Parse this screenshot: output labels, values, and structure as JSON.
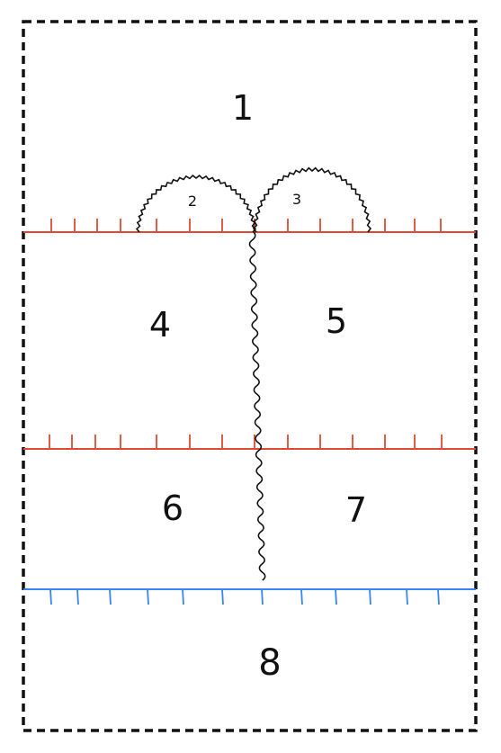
{
  "diagram": {
    "frame_style": "dashed",
    "colors": {
      "frame": "#111111",
      "red_line": "#e04a33",
      "blue_line": "#3b82f6",
      "wavy_line": "#111111"
    },
    "regions": [
      {
        "id": "region-1",
        "label": "1"
      },
      {
        "id": "region-2",
        "label": "2"
      },
      {
        "id": "region-3",
        "label": "3"
      },
      {
        "id": "region-4",
        "label": "4"
      },
      {
        "id": "region-5",
        "label": "5"
      },
      {
        "id": "region-6",
        "label": "6"
      },
      {
        "id": "region-7",
        "label": "7"
      },
      {
        "id": "region-8",
        "label": "8"
      }
    ],
    "boundaries": [
      {
        "id": "upper-red-hatched-line",
        "color": "red",
        "hatched": true
      },
      {
        "id": "middle-red-hatched-line",
        "color": "red",
        "hatched": true
      },
      {
        "id": "lower-blue-hatched-line",
        "color": "blue",
        "hatched": true
      },
      {
        "id": "vertical-wavy-line",
        "color": "black",
        "hatched": false
      },
      {
        "id": "left-wavy-arc",
        "color": "black",
        "hatched": false
      },
      {
        "id": "right-wavy-arc",
        "color": "black",
        "hatched": false
      }
    ]
  }
}
